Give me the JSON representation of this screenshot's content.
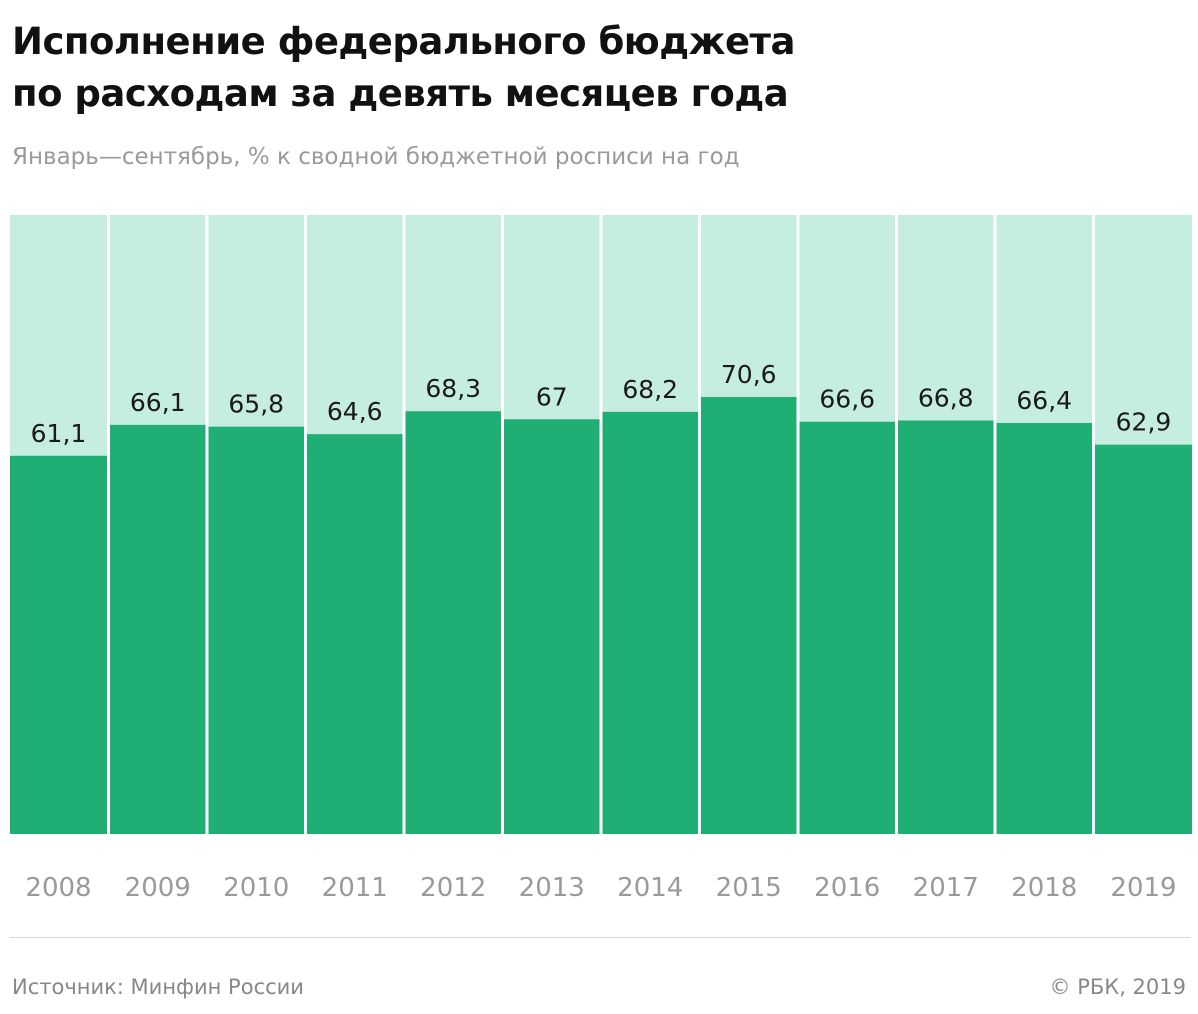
{
  "header": {
    "title_line1": "Исполнение федерального бюджета",
    "title_line2": "по расходам за девять месяцев года",
    "subtitle": "Январь—сентябрь, % к сводной бюджетной росписи на год"
  },
  "footer": {
    "source": "Источник: Минфин России",
    "credit": "© РБК, 2019"
  },
  "colors": {
    "bar": "#1fae74",
    "bar_background": "#c5ede0",
    "separator": "#ffffff"
  },
  "chart_data": {
    "type": "bar",
    "title": "Исполнение федерального бюджета по расходам за девять месяцев года",
    "subtitle": "Январь—сентябрь, % к сводной бюджетной росписи на год",
    "categories": [
      "2008",
      "2009",
      "2010",
      "2011",
      "2012",
      "2013",
      "2014",
      "2015",
      "2016",
      "2017",
      "2018",
      "2019"
    ],
    "values": [
      61.1,
      66.1,
      65.8,
      64.6,
      68.3,
      67,
      68.2,
      70.6,
      66.6,
      66.8,
      66.4,
      62.9
    ],
    "value_labels": [
      "61,1",
      "66,1",
      "65,8",
      "64,6",
      "68,3",
      "67",
      "68,2",
      "70,6",
      "66,6",
      "66,8",
      "66,4",
      "62,9"
    ],
    "ylim": [
      0,
      100
    ],
    "grid": false,
    "legend": "none"
  }
}
